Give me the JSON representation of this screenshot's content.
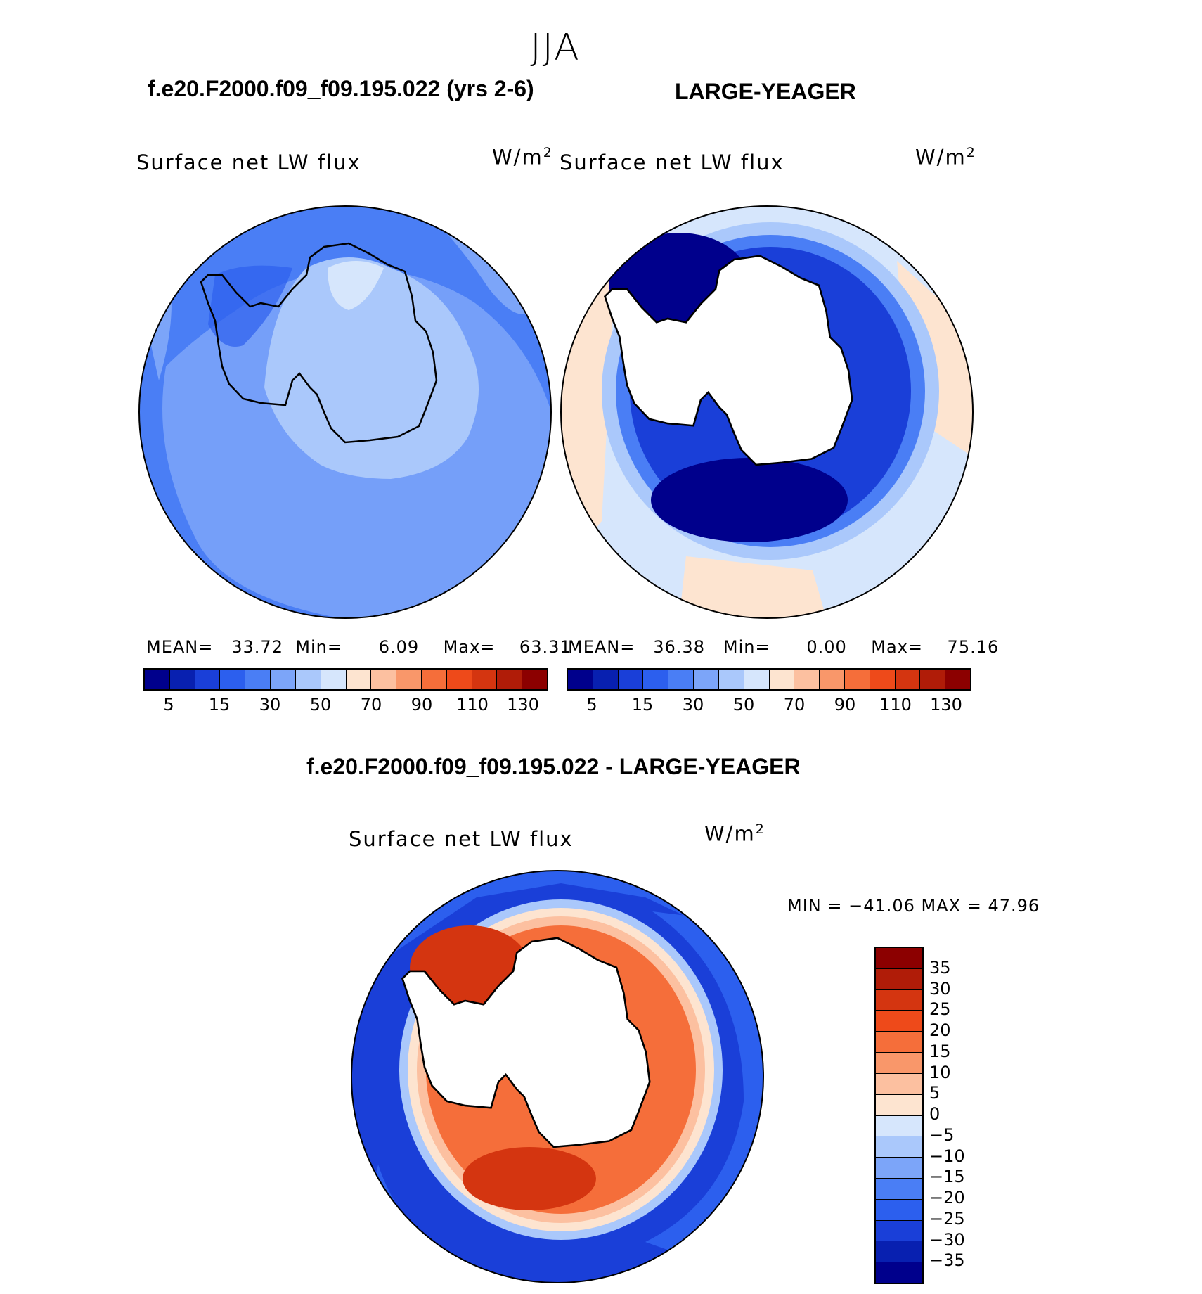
{
  "season": "JJA",
  "panels": {
    "model": {
      "case_title": "f.e20.F2000.f09_f09.195.022 (yrs 2-6)",
      "variable": "Surface net LW flux",
      "units_base": "W/m",
      "units_exp": "2",
      "mean_label": "MEAN=",
      "mean_value": "33.72",
      "min_label": "Min=",
      "min_value": "6.09",
      "max_label": "Max=",
      "max_value": "63.31"
    },
    "obs": {
      "case_title": "LARGE-YEAGER",
      "variable": "Surface net LW flux",
      "units_base": "W/m",
      "units_exp": "2",
      "mean_label": "MEAN=",
      "mean_value": "36.38",
      "min_label": "Min=",
      "min_value": "0.00",
      "max_label": "Max=",
      "max_value": "75.16"
    },
    "diff": {
      "case_title": "f.e20.F2000.f09_f09.195.022 - LARGE-YEAGER",
      "variable": "Surface net LW flux",
      "units_base": "W/m",
      "units_exp": "2",
      "minmax_text": "MIN = −41.06 MAX =   47.96"
    }
  },
  "colorbars": {
    "abs_colors": [
      "#00008c",
      "#0820b0",
      "#1a3fd8",
      "#2c5fee",
      "#4a7ef5",
      "#7ca5f9",
      "#aac8fb",
      "#d6e6fc",
      "#fde4d0",
      "#fcc0a0",
      "#f9976a",
      "#f56e3a",
      "#ee4a1a",
      "#d43510",
      "#b01c08",
      "#8c0000"
    ],
    "abs_labels": [
      "5",
      "15",
      "30",
      "50",
      "70",
      "90",
      "110",
      "130"
    ],
    "diff_colors_top_to_bottom": [
      "#8c0000",
      "#b01c08",
      "#d43510",
      "#ee4a1a",
      "#f56e3a",
      "#f9976a",
      "#fcc0a0",
      "#fde4d0",
      "#d6e6fc",
      "#aac8fb",
      "#7ca5f9",
      "#4a7ef5",
      "#2c5fee",
      "#1a3fd8",
      "#0820b0",
      "#00008c"
    ],
    "diff_labels": [
      "35",
      "30",
      "25",
      "20",
      "15",
      "10",
      "5",
      "0",
      "−5",
      "−10",
      "−15",
      "−20",
      "−25",
      "−30",
      "−35"
    ]
  },
  "map_colors": {
    "land": "#ffffff",
    "coast": "#000000"
  }
}
